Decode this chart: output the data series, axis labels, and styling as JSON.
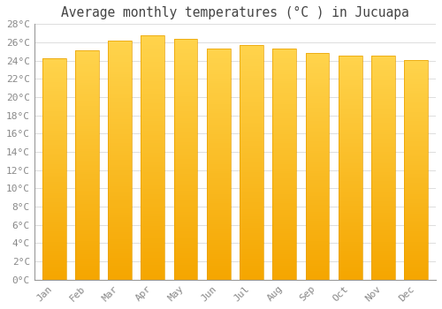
{
  "title": "Average monthly temperatures (°C ) in Jucuapa",
  "months": [
    "Jan",
    "Feb",
    "Mar",
    "Apr",
    "May",
    "Jun",
    "Jul",
    "Aug",
    "Sep",
    "Oct",
    "Nov",
    "Dec"
  ],
  "values": [
    24.3,
    25.1,
    26.2,
    26.8,
    26.4,
    25.3,
    25.7,
    25.3,
    24.8,
    24.5,
    24.5,
    24.1
  ],
  "bar_color_top": "#FFD44C",
  "bar_color_bottom": "#F5A800",
  "bar_edge_color": "#E8A000",
  "background_color": "#FFFFFF",
  "grid_color": "#DDDDDD",
  "text_color": "#888888",
  "title_color": "#444444",
  "ylim": [
    0,
    28
  ],
  "ytick_step": 2,
  "title_fontsize": 10.5,
  "tick_fontsize": 8,
  "tick_font_family": "monospace"
}
